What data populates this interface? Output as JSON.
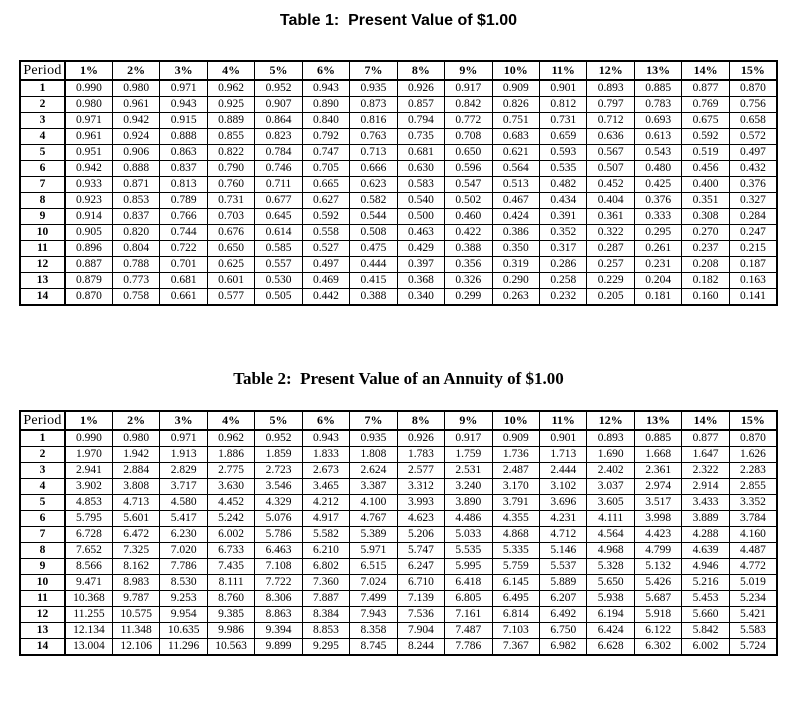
{
  "page": {
    "background": "#ffffff",
    "text_color": "#000000",
    "border_color": "#000000"
  },
  "tables": [
    {
      "id": "table1",
      "title": "Table 1:  Present Value of $1.00",
      "period_header": "Period",
      "rate_columns": [
        "1%",
        "2%",
        "3%",
        "4%",
        "5%",
        "6%",
        "7%",
        "8%",
        "9%",
        "10%",
        "11%",
        "12%",
        "13%",
        "14%",
        "15%"
      ],
      "periods": [
        "1",
        "2",
        "3",
        "4",
        "5",
        "6",
        "7",
        "8",
        "9",
        "10",
        "11",
        "12",
        "13",
        "14"
      ],
      "rows": [
        [
          "0.990",
          "0.980",
          "0.971",
          "0.962",
          "0.952",
          "0.943",
          "0.935",
          "0.926",
          "0.917",
          "0.909",
          "0.901",
          "0.893",
          "0.885",
          "0.877",
          "0.870"
        ],
        [
          "0.980",
          "0.961",
          "0.943",
          "0.925",
          "0.907",
          "0.890",
          "0.873",
          "0.857",
          "0.842",
          "0.826",
          "0.812",
          "0.797",
          "0.783",
          "0.769",
          "0.756"
        ],
        [
          "0.971",
          "0.942",
          "0.915",
          "0.889",
          "0.864",
          "0.840",
          "0.816",
          "0.794",
          "0.772",
          "0.751",
          "0.731",
          "0.712",
          "0.693",
          "0.675",
          "0.658"
        ],
        [
          "0.961",
          "0.924",
          "0.888",
          "0.855",
          "0.823",
          "0.792",
          "0.763",
          "0.735",
          "0.708",
          "0.683",
          "0.659",
          "0.636",
          "0.613",
          "0.592",
          "0.572"
        ],
        [
          "0.951",
          "0.906",
          "0.863",
          "0.822",
          "0.784",
          "0.747",
          "0.713",
          "0.681",
          "0.650",
          "0.621",
          "0.593",
          "0.567",
          "0.543",
          "0.519",
          "0.497"
        ],
        [
          "0.942",
          "0.888",
          "0.837",
          "0.790",
          "0.746",
          "0.705",
          "0.666",
          "0.630",
          "0.596",
          "0.564",
          "0.535",
          "0.507",
          "0.480",
          "0.456",
          "0.432"
        ],
        [
          "0.933",
          "0.871",
          "0.813",
          "0.760",
          "0.711",
          "0.665",
          "0.623",
          "0.583",
          "0.547",
          "0.513",
          "0.482",
          "0.452",
          "0.425",
          "0.400",
          "0.376"
        ],
        [
          "0.923",
          "0.853",
          "0.789",
          "0.731",
          "0.677",
          "0.627",
          "0.582",
          "0.540",
          "0.502",
          "0.467",
          "0.434",
          "0.404",
          "0.376",
          "0.351",
          "0.327"
        ],
        [
          "0.914",
          "0.837",
          "0.766",
          "0.703",
          "0.645",
          "0.592",
          "0.544",
          "0.500",
          "0.460",
          "0.424",
          "0.391",
          "0.361",
          "0.333",
          "0.308",
          "0.284"
        ],
        [
          "0.905",
          "0.820",
          "0.744",
          "0.676",
          "0.614",
          "0.558",
          "0.508",
          "0.463",
          "0.422",
          "0.386",
          "0.352",
          "0.322",
          "0.295",
          "0.270",
          "0.247"
        ],
        [
          "0.896",
          "0.804",
          "0.722",
          "0.650",
          "0.585",
          "0.527",
          "0.475",
          "0.429",
          "0.388",
          "0.350",
          "0.317",
          "0.287",
          "0.261",
          "0.237",
          "0.215"
        ],
        [
          "0.887",
          "0.788",
          "0.701",
          "0.625",
          "0.557",
          "0.497",
          "0.444",
          "0.397",
          "0.356",
          "0.319",
          "0.286",
          "0.257",
          "0.231",
          "0.208",
          "0.187"
        ],
        [
          "0.879",
          "0.773",
          "0.681",
          "0.601",
          "0.530",
          "0.469",
          "0.415",
          "0.368",
          "0.326",
          "0.290",
          "0.258",
          "0.229",
          "0.204",
          "0.182",
          "0.163"
        ],
        [
          "0.870",
          "0.758",
          "0.661",
          "0.577",
          "0.505",
          "0.442",
          "0.388",
          "0.340",
          "0.299",
          "0.263",
          "0.232",
          "0.205",
          "0.181",
          "0.160",
          "0.141"
        ]
      ]
    },
    {
      "id": "table2",
      "title": "Table 2:  Present Value of an Annuity of $1.00",
      "period_header": "Period",
      "rate_columns": [
        "1%",
        "2%",
        "3%",
        "4%",
        "5%",
        "6%",
        "7%",
        "8%",
        "9%",
        "10%",
        "11%",
        "12%",
        "13%",
        "14%",
        "15%"
      ],
      "periods": [
        "1",
        "2",
        "3",
        "4",
        "5",
        "6",
        "7",
        "8",
        "9",
        "10",
        "11",
        "12",
        "13",
        "14"
      ],
      "rows": [
        [
          "0.990",
          "0.980",
          "0.971",
          "0.962",
          "0.952",
          "0.943",
          "0.935",
          "0.926",
          "0.917",
          "0.909",
          "0.901",
          "0.893",
          "0.885",
          "0.877",
          "0.870"
        ],
        [
          "1.970",
          "1.942",
          "1.913",
          "1.886",
          "1.859",
          "1.833",
          "1.808",
          "1.783",
          "1.759",
          "1.736",
          "1.713",
          "1.690",
          "1.668",
          "1.647",
          "1.626"
        ],
        [
          "2.941",
          "2.884",
          "2.829",
          "2.775",
          "2.723",
          "2.673",
          "2.624",
          "2.577",
          "2.531",
          "2.487",
          "2.444",
          "2.402",
          "2.361",
          "2.322",
          "2.283"
        ],
        [
          "3.902",
          "3.808",
          "3.717",
          "3.630",
          "3.546",
          "3.465",
          "3.387",
          "3.312",
          "3.240",
          "3.170",
          "3.102",
          "3.037",
          "2.974",
          "2.914",
          "2.855"
        ],
        [
          "4.853",
          "4.713",
          "4.580",
          "4.452",
          "4.329",
          "4.212",
          "4.100",
          "3.993",
          "3.890",
          "3.791",
          "3.696",
          "3.605",
          "3.517",
          "3.433",
          "3.352"
        ],
        [
          "5.795",
          "5.601",
          "5.417",
          "5.242",
          "5.076",
          "4.917",
          "4.767",
          "4.623",
          "4.486",
          "4.355",
          "4.231",
          "4.111",
          "3.998",
          "3.889",
          "3.784"
        ],
        [
          "6.728",
          "6.472",
          "6.230",
          "6.002",
          "5.786",
          "5.582",
          "5.389",
          "5.206",
          "5.033",
          "4.868",
          "4.712",
          "4.564",
          "4.423",
          "4.288",
          "4.160"
        ],
        [
          "7.652",
          "7.325",
          "7.020",
          "6.733",
          "6.463",
          "6.210",
          "5.971",
          "5.747",
          "5.535",
          "5.335",
          "5.146",
          "4.968",
          "4.799",
          "4.639",
          "4.487"
        ],
        [
          "8.566",
          "8.162",
          "7.786",
          "7.435",
          "7.108",
          "6.802",
          "6.515",
          "6.247",
          "5.995",
          "5.759",
          "5.537",
          "5.328",
          "5.132",
          "4.946",
          "4.772"
        ],
        [
          "9.471",
          "8.983",
          "8.530",
          "8.111",
          "7.722",
          "7.360",
          "7.024",
          "6.710",
          "6.418",
          "6.145",
          "5.889",
          "5.650",
          "5.426",
          "5.216",
          "5.019"
        ],
        [
          "10.368",
          "9.787",
          "9.253",
          "8.760",
          "8.306",
          "7.887",
          "7.499",
          "7.139",
          "6.805",
          "6.495",
          "6.207",
          "5.938",
          "5.687",
          "5.453",
          "5.234"
        ],
        [
          "11.255",
          "10.575",
          "9.954",
          "9.385",
          "8.863",
          "8.384",
          "7.943",
          "7.536",
          "7.161",
          "6.814",
          "6.492",
          "6.194",
          "5.918",
          "5.660",
          "5.421"
        ],
        [
          "12.134",
          "11.348",
          "10.635",
          "9.986",
          "9.394",
          "8.853",
          "8.358",
          "7.904",
          "7.487",
          "7.103",
          "6.750",
          "6.424",
          "6.122",
          "5.842",
          "5.583"
        ],
        [
          "13.004",
          "12.106",
          "11.296",
          "10.563",
          "9.899",
          "9.295",
          "8.745",
          "8.244",
          "7.786",
          "7.367",
          "6.982",
          "6.628",
          "6.302",
          "6.002",
          "5.724"
        ]
      ]
    }
  ]
}
